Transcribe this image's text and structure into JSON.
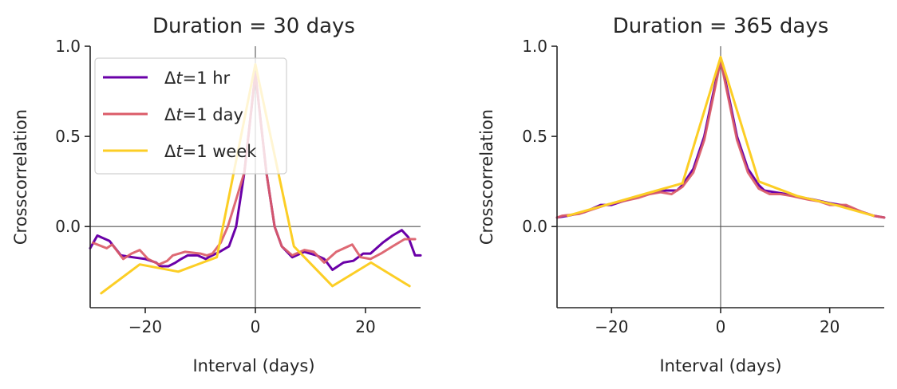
{
  "chart_data": [
    {
      "type": "line",
      "title": "Duration = 30 days",
      "xlabel": "Interval (days)",
      "ylabel": "Crosscorrelation",
      "xlim": [
        -30,
        30
      ],
      "ylim": [
        -0.45,
        1.0
      ],
      "xticks": [
        -20,
        0,
        20
      ],
      "xtick_labels": [
        "−20",
        "0",
        "20"
      ],
      "yticks": [
        0.0,
        0.5,
        1.0
      ],
      "ytick_labels": [
        "0.0",
        "0.5",
        "1.0"
      ],
      "reference_lines": {
        "x": 0,
        "y": 0
      },
      "grid": false,
      "legend": {
        "placement": "top-left",
        "show": true
      },
      "series": [
        {
          "name": "Δt=1 hr",
          "legend_prefix": "Δ",
          "legend_italic": "t",
          "legend_suffix": "=1 hr",
          "color": "#6a00a8",
          "x": [
            -30,
            -28.7,
            -26.5,
            -24.4,
            -22.3,
            -20,
            -18,
            -17.3,
            -15.8,
            -14.5,
            -13.5,
            -12.3,
            -10.5,
            -9,
            -8.5,
            -6.5,
            -4.8,
            -3.5,
            -2,
            0,
            2,
            3.5,
            4.8,
            6.7,
            8.9,
            11.1,
            12.5,
            14,
            16,
            17.8,
            19.6,
            20.9,
            23.1,
            24.9,
            26.6,
            27.8,
            29,
            30
          ],
          "y": [
            -0.12,
            -0.05,
            -0.08,
            -0.16,
            -0.17,
            -0.18,
            -0.2,
            -0.22,
            -0.22,
            -0.2,
            -0.18,
            -0.16,
            -0.16,
            -0.18,
            -0.17,
            -0.14,
            -0.11,
            0.0,
            0.3,
            0.85,
            0.3,
            0.0,
            -0.11,
            -0.17,
            -0.14,
            -0.16,
            -0.18,
            -0.24,
            -0.2,
            -0.19,
            -0.15,
            -0.15,
            -0.09,
            -0.05,
            -0.02,
            -0.06,
            -0.16,
            -0.16
          ]
        },
        {
          "name": "Δt=1 day",
          "legend_prefix": "Δ",
          "legend_italic": "t",
          "legend_suffix": "=1 day",
          "color": "#db5c68",
          "x": [
            -29.5,
            -27,
            -26,
            -24,
            -22.5,
            -21,
            -19.5,
            -17.5,
            -16,
            -15,
            -12.8,
            -10,
            -8.8,
            -7.8,
            -6.3,
            -5,
            -3.5,
            -2,
            0,
            2,
            3.5,
            4.8,
            6.7,
            8.9,
            10.6,
            12.5,
            14.7,
            17.6,
            19.1,
            20.9,
            22.8,
            24.9,
            27.1,
            29
          ],
          "y": [
            -0.09,
            -0.12,
            -0.1,
            -0.18,
            -0.15,
            -0.13,
            -0.18,
            -0.21,
            -0.19,
            -0.16,
            -0.14,
            -0.15,
            -0.16,
            -0.15,
            -0.09,
            0.0,
            0.15,
            0.3,
            0.85,
            0.3,
            0.0,
            -0.11,
            -0.16,
            -0.13,
            -0.14,
            -0.2,
            -0.14,
            -0.1,
            -0.17,
            -0.18,
            -0.15,
            -0.11,
            -0.07,
            -0.07
          ]
        },
        {
          "name": "Δt=1 week",
          "legend_prefix": "Δ",
          "legend_italic": "t",
          "legend_suffix": "=1 week",
          "color": "#fcce25",
          "x": [
            -28,
            -21,
            -14,
            -7,
            0,
            7,
            14,
            21,
            28
          ],
          "y": [
            -0.37,
            -0.21,
            -0.25,
            -0.17,
            0.9,
            -0.11,
            -0.33,
            -0.2,
            -0.33
          ]
        }
      ]
    },
    {
      "type": "line",
      "title": "Duration = 365 days",
      "xlabel": "Interval (days)",
      "ylabel": "Crosscorrelation",
      "xlim": [
        -30,
        30
      ],
      "ylim": [
        -0.45,
        1.0
      ],
      "xticks": [
        -20,
        0,
        20
      ],
      "xtick_labels": [
        "−20",
        "0",
        "20"
      ],
      "yticks": [
        0.0,
        0.5,
        1.0
      ],
      "ytick_labels": [
        "0.0",
        "0.5",
        "1.0"
      ],
      "reference_lines": {
        "x": 0,
        "y": 0
      },
      "grid": false,
      "legend": {
        "show": false
      },
      "series": [
        {
          "name": "Δt=1 hr",
          "color": "#6a00a8",
          "x": [
            -30,
            -28,
            -25,
            -22,
            -20,
            -17,
            -15,
            -12,
            -10,
            -8,
            -7,
            -5,
            -3,
            -1.5,
            0,
            1.5,
            3,
            5,
            7,
            8,
            10,
            12,
            15,
            17,
            20,
            22,
            25,
            28,
            30
          ],
          "y": [
            0.05,
            0.06,
            0.08,
            0.12,
            0.12,
            0.15,
            0.17,
            0.19,
            0.2,
            0.2,
            0.23,
            0.32,
            0.5,
            0.72,
            0.93,
            0.72,
            0.5,
            0.32,
            0.23,
            0.2,
            0.19,
            0.18,
            0.16,
            0.15,
            0.13,
            0.12,
            0.09,
            0.06,
            0.05
          ]
        },
        {
          "name": "Δt=1 day",
          "color": "#db5c68",
          "x": [
            -30,
            -29,
            -26,
            -23,
            -21,
            -18,
            -15,
            -13,
            -11,
            -9,
            -7,
            -5,
            -3,
            -1.5,
            0,
            1.5,
            3,
            5,
            7,
            9,
            11,
            13,
            16,
            18,
            20,
            23,
            26,
            28,
            30
          ],
          "y": [
            0.05,
            0.06,
            0.07,
            0.1,
            0.12,
            0.14,
            0.16,
            0.18,
            0.19,
            0.18,
            0.22,
            0.3,
            0.48,
            0.7,
            0.92,
            0.7,
            0.48,
            0.3,
            0.21,
            0.18,
            0.18,
            0.17,
            0.15,
            0.14,
            0.12,
            0.12,
            0.08,
            0.06,
            0.05
          ]
        },
        {
          "name": "Δt=1 week",
          "color": "#fcce25",
          "x": [
            -28,
            -21,
            -14,
            -7,
            0,
            7,
            14,
            21,
            28
          ],
          "y": [
            0.06,
            0.12,
            0.18,
            0.24,
            0.94,
            0.25,
            0.17,
            0.12,
            0.06
          ]
        }
      ]
    }
  ]
}
